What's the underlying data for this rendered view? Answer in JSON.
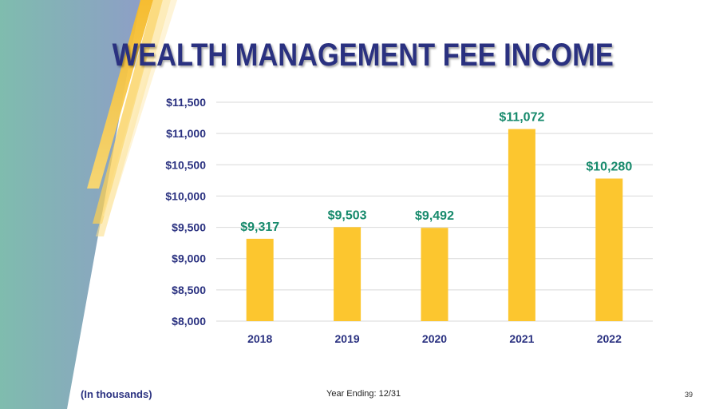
{
  "title": "WEALTH MANAGEMENT FEE INCOME",
  "footnote": "(In thousands)",
  "year_ending": "Year Ending: 12/31",
  "page_number": "39",
  "colors": {
    "bar": "#fcc62f",
    "title": "#2a3180",
    "data_label": "#178a6c",
    "grid": "#d9d9d9",
    "teal_band": "#7fb9b0",
    "blue_band": "#8a9fc4",
    "gold_stripe": "#f7c030"
  },
  "chart_data": {
    "type": "bar",
    "categories": [
      "2018",
      "2019",
      "2020",
      "2021",
      "2022"
    ],
    "values": [
      9317,
      9503,
      9492,
      11072,
      10280
    ],
    "data_labels": [
      "$9,317",
      "$9,503",
      "$9,492",
      "$11,072",
      "$10,280"
    ],
    "y_ticks": [
      8000,
      8500,
      9000,
      9500,
      10000,
      10500,
      11000,
      11500
    ],
    "y_tick_labels": [
      "$8,000",
      "$8,500",
      "$9,000",
      "$9,500",
      "$10,000",
      "$10,500",
      "$11,000",
      "$11,500"
    ],
    "ylim": [
      8000,
      11500
    ],
    "grid": true,
    "legend": "none"
  }
}
